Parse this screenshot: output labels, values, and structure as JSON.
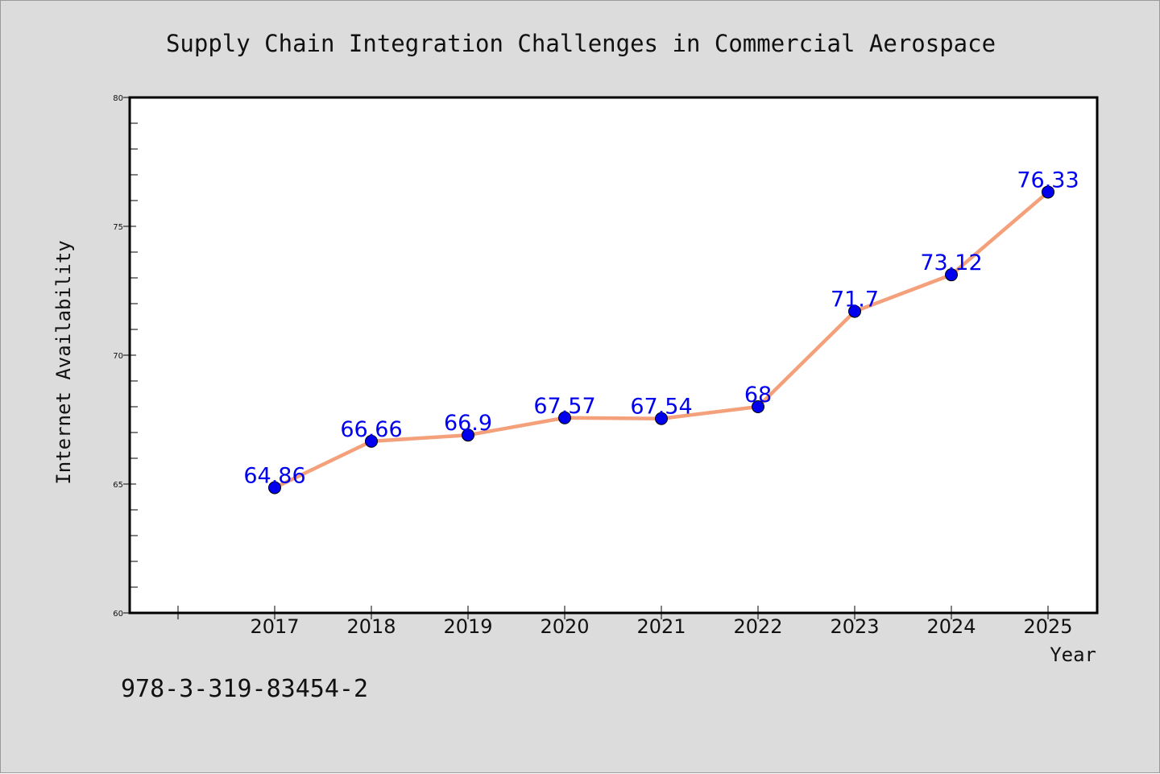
{
  "chart_data": {
    "type": "line",
    "title": "Supply Chain Integration Challenges in Commercial Aerospace",
    "xlabel": "Year",
    "ylabel": "Internet Availability",
    "categories": [
      "2017",
      "2018",
      "2019",
      "2020",
      "2021",
      "2022",
      "2023",
      "2024",
      "2025"
    ],
    "series": [
      {
        "values": [
          64.86,
          66.66,
          66.9,
          67.57,
          67.54,
          68,
          71.7,
          73.12,
          76.33
        ],
        "line_color": "#f4a07a",
        "marker_color": "#0000ee",
        "label_color": "#0000ee"
      }
    ],
    "data_labels": [
      "64.86",
      "66.66",
      "66.9",
      "67.57",
      "67.54",
      "68",
      "71.7",
      "73.12",
      "76.33"
    ],
    "ylim": [
      60,
      80
    ],
    "y_ticks": [
      "60",
      "65",
      "70",
      "75",
      "80"
    ],
    "grid": false,
    "legend": "none",
    "footer_text": "978-3-319-83454-2",
    "background_color": "#dcdcdc",
    "plot_background_color": "#ffffff"
  }
}
